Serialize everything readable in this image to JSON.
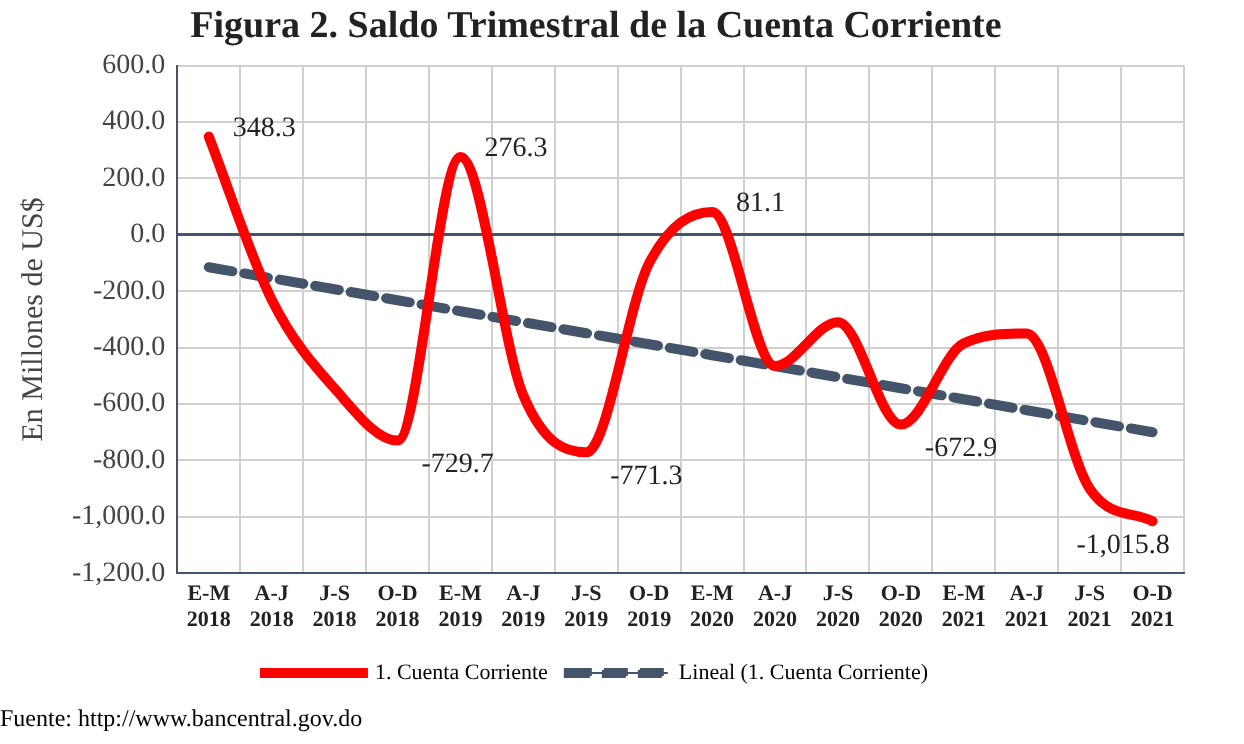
{
  "chart_data": {
    "type": "line",
    "title": "Figura 2. Saldo Trimestral de la Cuenta Corriente",
    "ylabel": "En Millones de US$",
    "categories": [
      "E-M 2018",
      "A-J 2018",
      "J-S 2018",
      "O-D 2018",
      "E-M 2019",
      "A-J 2019",
      "J-S 2019",
      "O-D 2019",
      "E-M 2020",
      "A-J 2020",
      "J-S 2020",
      "O-D 2020",
      "E-M 2021",
      "A-J 2021",
      "J-S 2021",
      "O-D 2021"
    ],
    "series": [
      {
        "name": "1. Cuenta Corriente",
        "color": "#ff0000",
        "line_style": "solid",
        "values": [
          348.3,
          -230,
          -545,
          -729.7,
          276.3,
          -570,
          -771.3,
          -100,
          81.1,
          -465,
          -310,
          -672.9,
          -385,
          -350,
          -900,
          -1015.8
        ],
        "value_labels": [
          "348.3",
          null,
          null,
          "-729.7",
          "276.3",
          null,
          "-771.3",
          null,
          "81.1",
          null,
          null,
          "-672.9",
          null,
          null,
          null,
          "-1,015.8"
        ]
      },
      {
        "name": "Lineal (1. Cuenta Corriente)",
        "color": "#44546a",
        "line_style": "dashed",
        "values": [
          -115,
          -154,
          -193,
          -232,
          -271,
          -310,
          -349,
          -388,
          -427,
          -466,
          -505,
          -544,
          -583,
          -622,
          -661,
          -700
        ]
      }
    ],
    "ylim": [
      -1200,
      600
    ],
    "yticks": [
      {
        "value": 600,
        "label": "600.0"
      },
      {
        "value": 400,
        "label": "400.0"
      },
      {
        "value": 200,
        "label": "200.0"
      },
      {
        "value": 0,
        "label": "0.0"
      },
      {
        "value": -200,
        "label": "-200.0"
      },
      {
        "value": -400,
        "label": "-400.0"
      },
      {
        "value": -600,
        "label": "-600.0"
      },
      {
        "value": -800,
        "label": "-800.0"
      },
      {
        "value": -1000,
        "label": "-1,000.0"
      },
      {
        "value": -1200,
        "label": "-1,200.0"
      }
    ],
    "grid": true,
    "legend": "bottom",
    "marker": "none",
    "annotations": [
      "Fuente: http://www.bancentral.gov.do"
    ]
  }
}
